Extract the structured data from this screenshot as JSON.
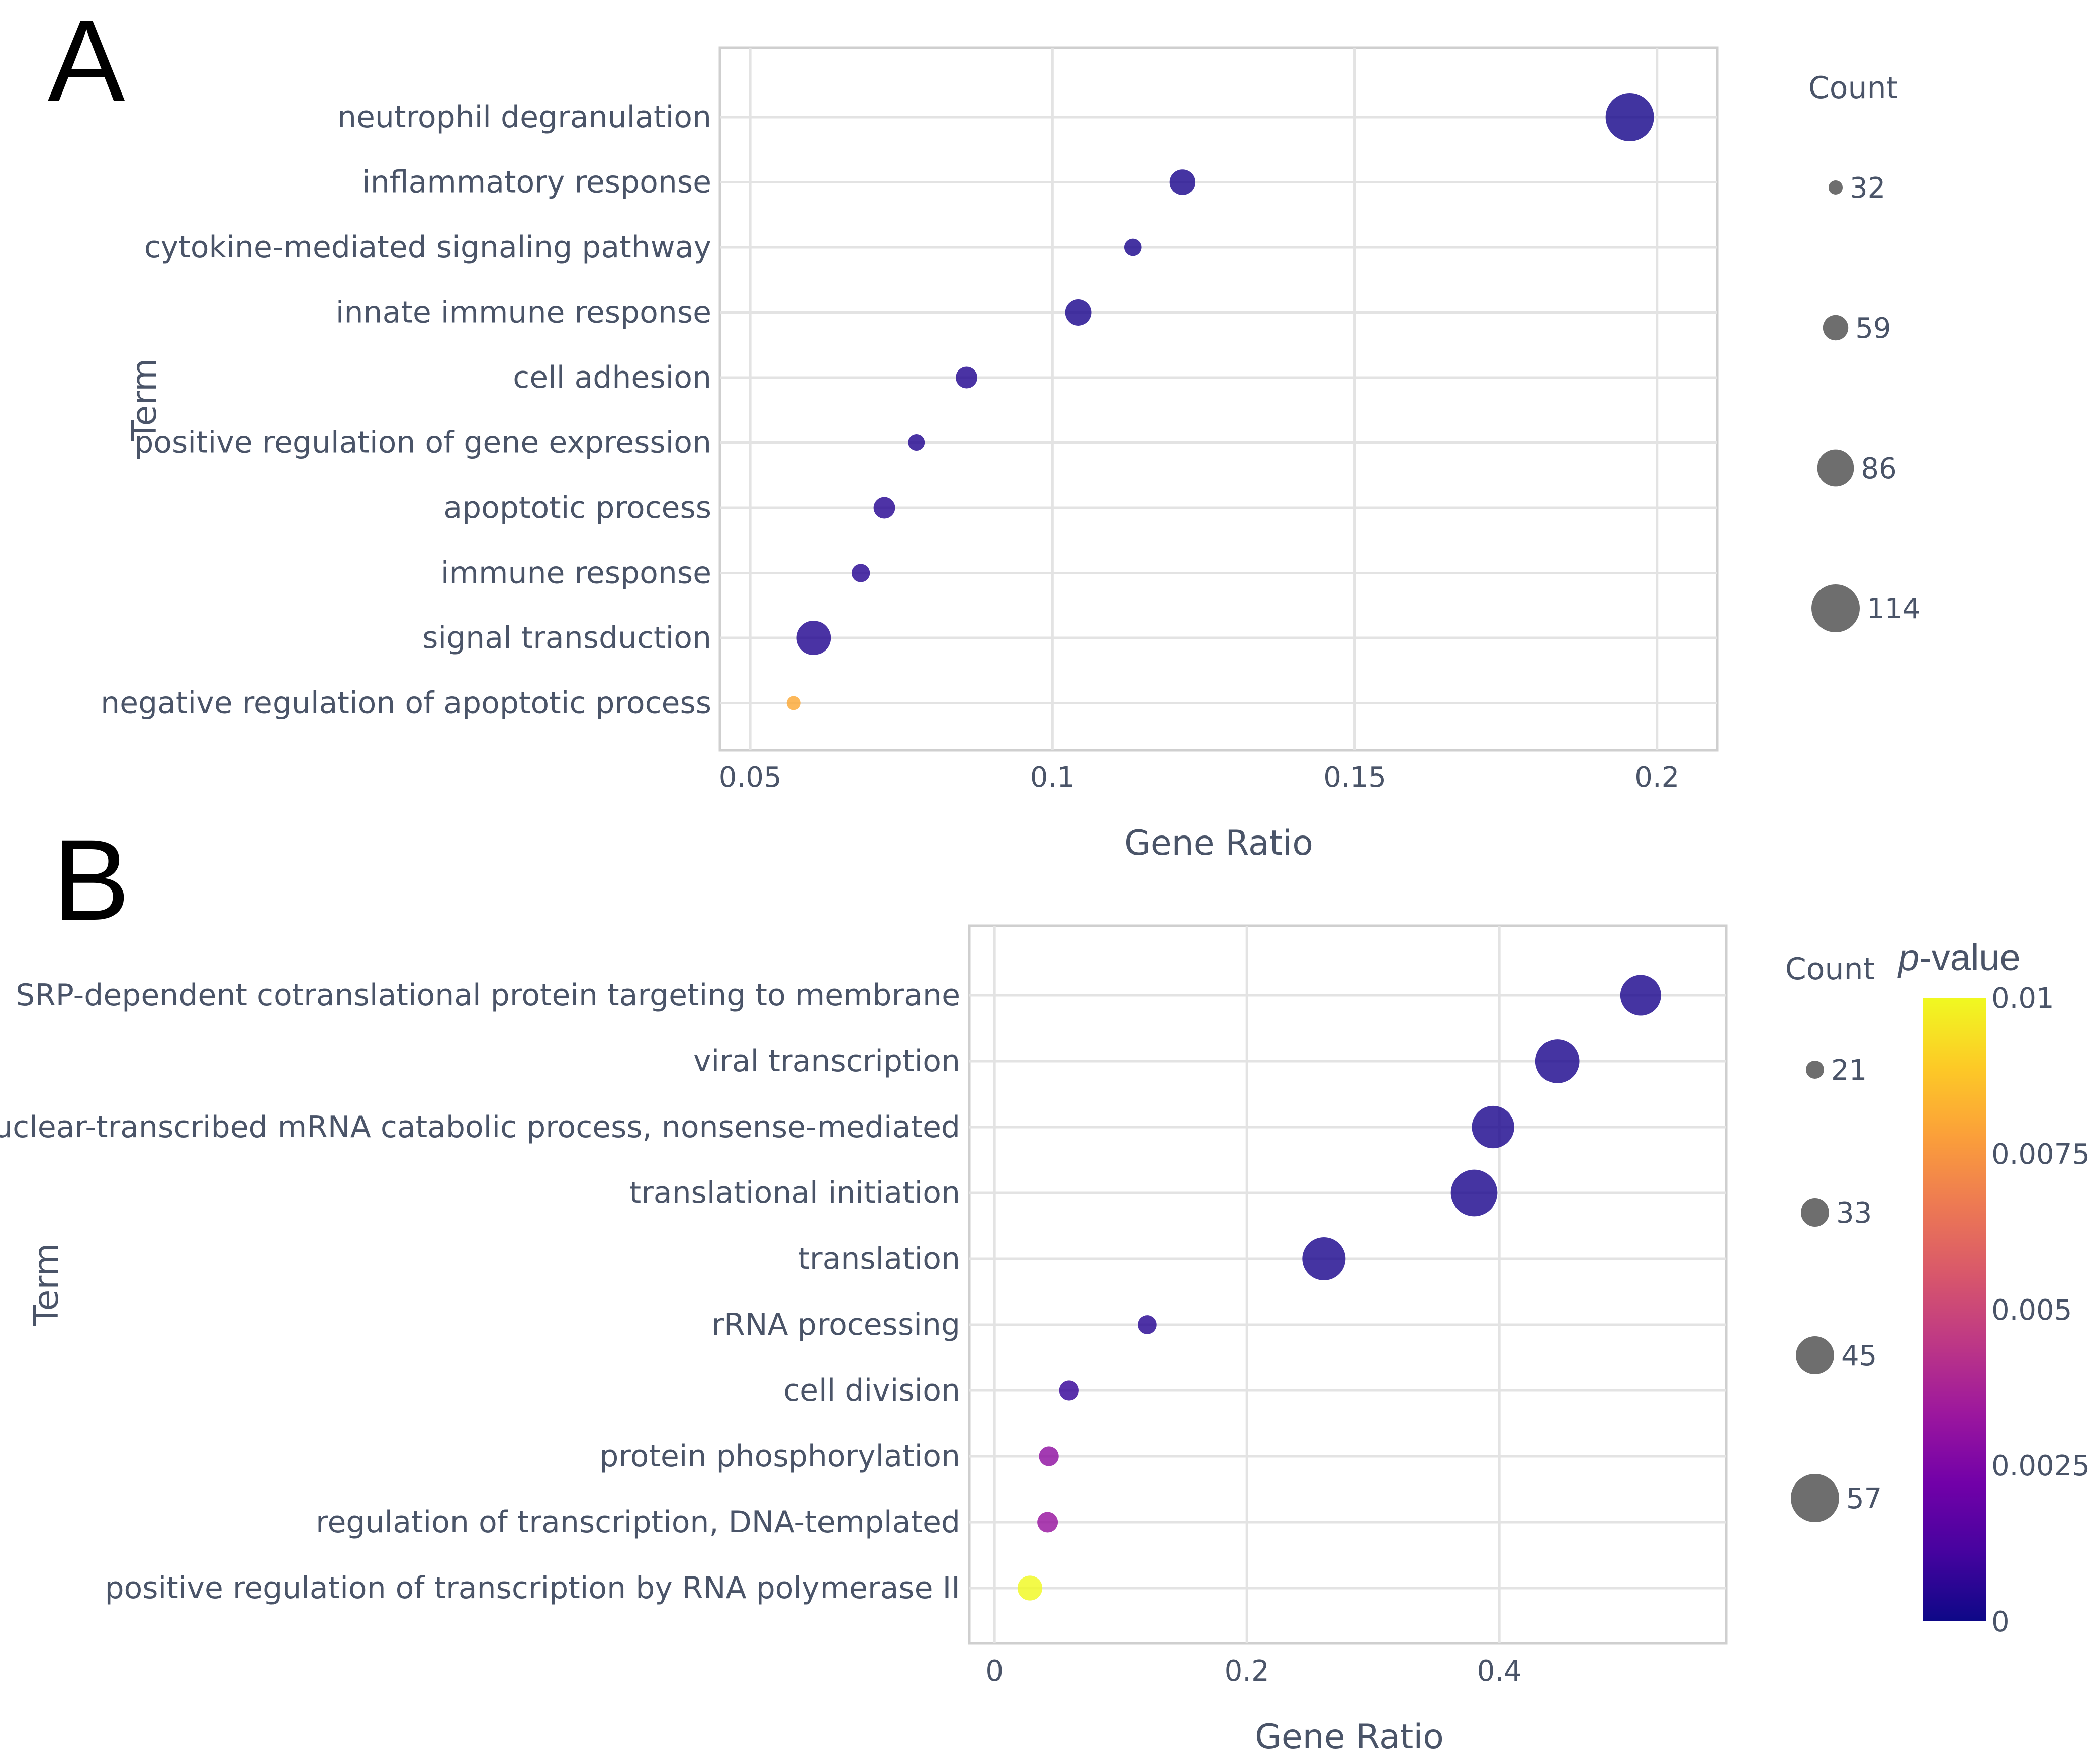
{
  "chart_data": [
    {
      "type": "scatter",
      "panel": "A",
      "xlabel": "Gene Ratio",
      "ylabel": "Term",
      "xlim": [
        0.045,
        0.21
      ],
      "xticks": [
        0.05,
        0.1,
        0.15,
        0.2
      ],
      "xtick_labels": [
        "0.05",
        "0.1",
        "0.15",
        "0.2"
      ],
      "grid": true,
      "size_legend": {
        "title": "Count",
        "values": [
          32,
          59,
          86,
          114
        ],
        "labels": [
          "32",
          "59",
          "86",
          "114"
        ]
      },
      "terms": [
        "neutrophil degranulation",
        "inflammatory response",
        "cytokine-mediated signaling pathway",
        "innate immune response",
        "cell adhesion",
        "positive regulation of gene expression",
        "apoptotic process",
        "immune response",
        "signal transduction",
        "negative regulation of apoptotic process"
      ],
      "points": [
        {
          "term": "neutrophil degranulation",
          "gene_ratio": 0.1955,
          "count": 114,
          "p_value": 0.0002
        },
        {
          "term": "inflammatory response",
          "gene_ratio": 0.1215,
          "count": 59,
          "p_value": 0.0003
        },
        {
          "term": "cytokine-mediated signaling pathway",
          "gene_ratio": 0.1133,
          "count": 40,
          "p_value": 0.0003
        },
        {
          "term": "innate immune response",
          "gene_ratio": 0.1043,
          "count": 62,
          "p_value": 0.0003
        },
        {
          "term": "cell adhesion",
          "gene_ratio": 0.0858,
          "count": 50,
          "p_value": 0.0004
        },
        {
          "term": "positive regulation of gene expression",
          "gene_ratio": 0.0775,
          "count": 38,
          "p_value": 0.0004
        },
        {
          "term": "apoptotic process",
          "gene_ratio": 0.0722,
          "count": 50,
          "p_value": 0.0005
        },
        {
          "term": "immune response",
          "gene_ratio": 0.0683,
          "count": 42,
          "p_value": 0.0005
        },
        {
          "term": "signal transduction",
          "gene_ratio": 0.0605,
          "count": 80,
          "p_value": 0.0004
        },
        {
          "term": "negative regulation of apoptotic process",
          "gene_ratio": 0.0572,
          "count": 32,
          "p_value": 0.008
        }
      ]
    },
    {
      "type": "scatter",
      "panel": "B",
      "xlabel": "Gene Ratio",
      "ylabel": "Term",
      "xlim": [
        -0.02,
        0.58
      ],
      "xticks": [
        0,
        0.2,
        0.4
      ],
      "xtick_labels": [
        "0",
        "0.2",
        "0.4"
      ],
      "grid": true,
      "size_legend": {
        "title": "Count",
        "values": [
          21,
          33,
          45,
          57
        ],
        "labels": [
          "21",
          "33",
          "45",
          "57"
        ]
      },
      "colorbar": {
        "title_italic": "p",
        "title_rest": "-value",
        "min": 0,
        "max": 0.01,
        "ticks": [
          0,
          0.0025,
          0.005,
          0.0075,
          0.01
        ],
        "tick_labels": [
          "0",
          "0.0025",
          "0.005",
          "0.0075",
          "0.01"
        ],
        "stops": [
          "#0d0887",
          "#46039f",
          "#7201a8",
          "#9c179e",
          "#bd3786",
          "#d8576b",
          "#ed7953",
          "#fb9f3a",
          "#fdca26",
          "#f0f921"
        ]
      },
      "terms": [
        "SRP-dependent cotranslational protein targeting to membrane",
        "viral transcription",
        "nuclear-transcribed mRNA catabolic process, nonsense-mediated",
        "translational initiation",
        "translation",
        "rRNA processing",
        "cell division",
        "protein phosphorylation",
        "regulation of transcription, DNA-templated",
        "positive regulation of transcription by RNA polymerase II"
      ],
      "points": [
        {
          "term": "SRP-dependent cotranslational protein targeting to membrane",
          "gene_ratio": 0.512,
          "count": 48,
          "p_value": 0.0003
        },
        {
          "term": "viral transcription",
          "gene_ratio": 0.446,
          "count": 52,
          "p_value": 0.0003
        },
        {
          "term": "nuclear-transcribed mRNA catabolic process, nonsense-mediated",
          "gene_ratio": 0.395,
          "count": 50,
          "p_value": 0.0003
        },
        {
          "term": "translational initiation",
          "gene_ratio": 0.38,
          "count": 55,
          "p_value": 0.0003
        },
        {
          "term": "translation",
          "gene_ratio": 0.261,
          "count": 51,
          "p_value": 0.0003
        },
        {
          "term": "rRNA processing",
          "gene_ratio": 0.121,
          "count": 22,
          "p_value": 0.0005
        },
        {
          "term": "cell division",
          "gene_ratio": 0.059,
          "count": 23,
          "p_value": 0.0008
        },
        {
          "term": "protein phosphorylation",
          "gene_ratio": 0.043,
          "count": 23,
          "p_value": 0.003
        },
        {
          "term": "regulation of transcription, DNA-templated",
          "gene_ratio": 0.042,
          "count": 24,
          "p_value": 0.0032
        },
        {
          "term": "positive regulation of transcription by RNA polymerase II",
          "gene_ratio": 0.028,
          "count": 29,
          "p_value": 0.01
        }
      ]
    }
  ]
}
